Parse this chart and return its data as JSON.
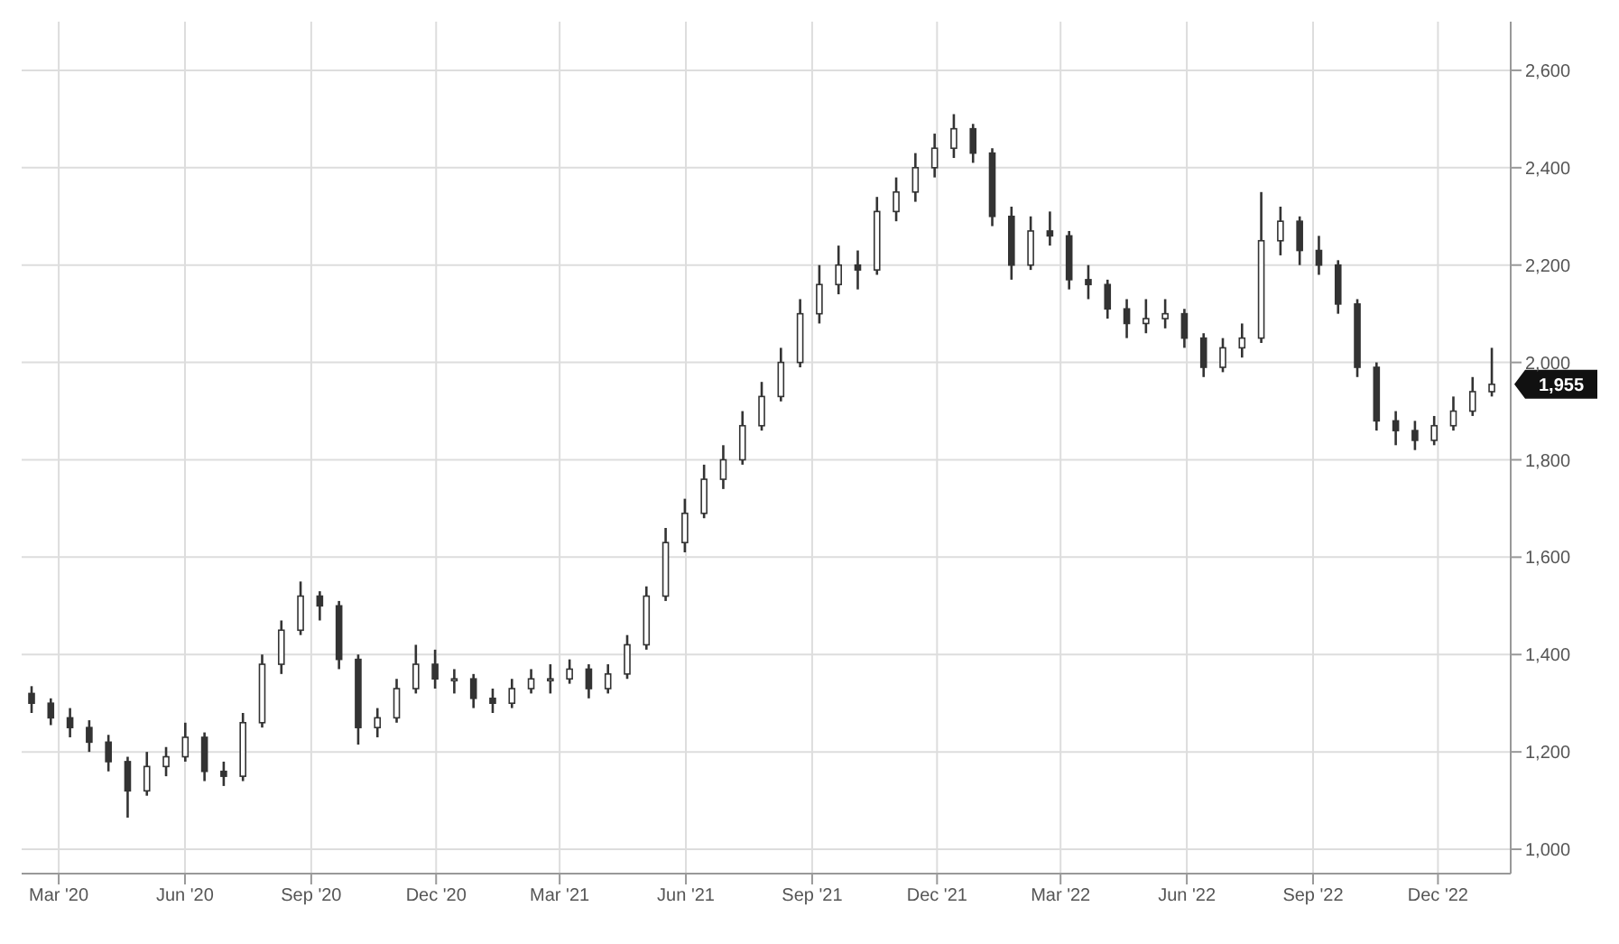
{
  "chart_data": {
    "type": "candlestick",
    "color": "#333333",
    "grid": true,
    "xlim": [
      "2020-02-03",
      "2023-01-23"
    ],
    "xticks": [
      {
        "value": "2020-03-01",
        "label": "Mar '20"
      },
      {
        "value": "2020-06-01",
        "label": "Jun '20"
      },
      {
        "value": "2020-09-01",
        "label": "Sep '20"
      },
      {
        "value": "2020-12-01",
        "label": "Dec '20"
      },
      {
        "value": "2021-03-01",
        "label": "Mar '21"
      },
      {
        "value": "2021-06-01",
        "label": "Jun '21"
      },
      {
        "value": "2021-09-01",
        "label": "Sep '21"
      },
      {
        "value": "2021-12-01",
        "label": "Dec '21"
      },
      {
        "value": "2022-03-01",
        "label": "Mar '22"
      },
      {
        "value": "2022-06-01",
        "label": "Jun '22"
      },
      {
        "value": "2022-09-01",
        "label": "Sep '22"
      },
      {
        "value": "2022-12-01",
        "label": "Dec '22"
      }
    ],
    "ylim": [
      950,
      2700
    ],
    "yticks": [
      {
        "value": 1000,
        "label": "1,000"
      },
      {
        "value": 1200,
        "label": "1,200"
      },
      {
        "value": 1400,
        "label": "1,400"
      },
      {
        "value": 1600,
        "label": "1,600"
      },
      {
        "value": 1800,
        "label": "1,800"
      },
      {
        "value": 2000,
        "label": "2,000"
      },
      {
        "value": 2200,
        "label": "2,200"
      },
      {
        "value": 2400,
        "label": "2,400"
      },
      {
        "value": 2600,
        "label": "2,600"
      }
    ],
    "annotations": [
      {
        "text": "1,955",
        "x": "2023-01-09",
        "y": 1955
      }
    ],
    "x": [
      "2020-02-10",
      "2020-02-24",
      "2020-03-09",
      "2020-03-23",
      "2020-04-06",
      "2020-04-20",
      "2020-05-04",
      "2020-05-18",
      "2020-06-01",
      "2020-06-15",
      "2020-06-29",
      "2020-07-13",
      "2020-07-27",
      "2020-08-10",
      "2020-08-24",
      "2020-09-07",
      "2020-09-21",
      "2020-10-05",
      "2020-10-19",
      "2020-11-02",
      "2020-11-16",
      "2020-11-30",
      "2020-12-14",
      "2020-12-28",
      "2021-01-11",
      "2021-01-25",
      "2021-02-08",
      "2021-02-22",
      "2021-03-08",
      "2021-03-22",
      "2021-04-05",
      "2021-04-19",
      "2021-05-03",
      "2021-05-17",
      "2021-05-31",
      "2021-06-14",
      "2021-06-28",
      "2021-07-12",
      "2021-07-26",
      "2021-08-09",
      "2021-08-23",
      "2021-09-06",
      "2021-09-20",
      "2021-10-04",
      "2021-10-18",
      "2021-11-01",
      "2021-11-15",
      "2021-11-29",
      "2021-12-13",
      "2021-12-27",
      "2022-01-10",
      "2022-01-24",
      "2022-02-07",
      "2022-02-21",
      "2022-03-07",
      "2022-03-21",
      "2022-04-04",
      "2022-04-18",
      "2022-05-02",
      "2022-05-16",
      "2022-05-30",
      "2022-06-13",
      "2022-06-27",
      "2022-07-11",
      "2022-07-25",
      "2022-08-08",
      "2022-08-22",
      "2022-09-05",
      "2022-09-19",
      "2022-10-03",
      "2022-10-17",
      "2022-10-31",
      "2022-11-14",
      "2022-11-28",
      "2022-12-12",
      "2022-12-26",
      "2023-01-09"
    ],
    "ohlc": [
      [
        1320,
        1335,
        1280,
        1300
      ],
      [
        1300,
        1310,
        1255,
        1270
      ],
      [
        1270,
        1290,
        1230,
        1250
      ],
      [
        1250,
        1265,
        1200,
        1220
      ],
      [
        1220,
        1235,
        1160,
        1180
      ],
      [
        1180,
        1190,
        1065,
        1120
      ],
      [
        1120,
        1200,
        1110,
        1170
      ],
      [
        1170,
        1210,
        1150,
        1190
      ],
      [
        1190,
        1260,
        1180,
        1230
      ],
      [
        1230,
        1240,
        1140,
        1160
      ],
      [
        1160,
        1180,
        1130,
        1150
      ],
      [
        1150,
        1280,
        1140,
        1260
      ],
      [
        1260,
        1400,
        1250,
        1380
      ],
      [
        1380,
        1470,
        1360,
        1450
      ],
      [
        1450,
        1550,
        1440,
        1520
      ],
      [
        1520,
        1530,
        1470,
        1500
      ],
      [
        1500,
        1510,
        1370,
        1390
      ],
      [
        1390,
        1400,
        1215,
        1250
      ],
      [
        1250,
        1290,
        1230,
        1270
      ],
      [
        1270,
        1350,
        1260,
        1330
      ],
      [
        1330,
        1420,
        1320,
        1380
      ],
      [
        1380,
        1410,
        1330,
        1350
      ],
      [
        1350,
        1370,
        1320,
        1350
      ],
      [
        1350,
        1360,
        1290,
        1310
      ],
      [
        1310,
        1330,
        1280,
        1300
      ],
      [
        1300,
        1350,
        1290,
        1330
      ],
      [
        1330,
        1370,
        1320,
        1350
      ],
      [
        1350,
        1380,
        1320,
        1350
      ],
      [
        1350,
        1390,
        1340,
        1370
      ],
      [
        1370,
        1380,
        1310,
        1330
      ],
      [
        1330,
        1380,
        1320,
        1360
      ],
      [
        1360,
        1440,
        1350,
        1420
      ],
      [
        1420,
        1540,
        1410,
        1520
      ],
      [
        1520,
        1660,
        1510,
        1630
      ],
      [
        1630,
        1720,
        1610,
        1690
      ],
      [
        1690,
        1790,
        1680,
        1760
      ],
      [
        1760,
        1830,
        1740,
        1800
      ],
      [
        1800,
        1900,
        1790,
        1870
      ],
      [
        1870,
        1960,
        1860,
        1930
      ],
      [
        1930,
        2030,
        1920,
        2000
      ],
      [
        2000,
        2130,
        1990,
        2100
      ],
      [
        2100,
        2200,
        2080,
        2160
      ],
      [
        2160,
        2240,
        2140,
        2200
      ],
      [
        2200,
        2230,
        2150,
        2190
      ],
      [
        2190,
        2340,
        2180,
        2310
      ],
      [
        2310,
        2380,
        2290,
        2350
      ],
      [
        2350,
        2430,
        2330,
        2400
      ],
      [
        2400,
        2470,
        2380,
        2440
      ],
      [
        2440,
        2510,
        2420,
        2480
      ],
      [
        2480,
        2490,
        2410,
        2430
      ],
      [
        2430,
        2440,
        2280,
        2300
      ],
      [
        2300,
        2320,
        2170,
        2200
      ],
      [
        2200,
        2300,
        2190,
        2270
      ],
      [
        2270,
        2310,
        2240,
        2260
      ],
      [
        2260,
        2270,
        2150,
        2170
      ],
      [
        2170,
        2200,
        2130,
        2160
      ],
      [
        2160,
        2170,
        2090,
        2110
      ],
      [
        2110,
        2130,
        2050,
        2080
      ],
      [
        2080,
        2130,
        2060,
        2090
      ],
      [
        2090,
        2130,
        2070,
        2100
      ],
      [
        2100,
        2110,
        2030,
        2050
      ],
      [
        2050,
        2060,
        1970,
        1990
      ],
      [
        1990,
        2050,
        1980,
        2030
      ],
      [
        2030,
        2080,
        2010,
        2050
      ],
      [
        2050,
        2350,
        2040,
        2250
      ],
      [
        2250,
        2320,
        2220,
        2290
      ],
      [
        2290,
        2300,
        2200,
        2230
      ],
      [
        2230,
        2260,
        2180,
        2200
      ],
      [
        2200,
        2210,
        2100,
        2120
      ],
      [
        2120,
        2130,
        1970,
        1990
      ],
      [
        1990,
        2000,
        1860,
        1880
      ],
      [
        1880,
        1900,
        1830,
        1860
      ],
      [
        1860,
        1880,
        1820,
        1840
      ],
      [
        1840,
        1890,
        1830,
        1870
      ],
      [
        1870,
        1930,
        1860,
        1900
      ],
      [
        1900,
        1970,
        1890,
        1940
      ],
      [
        1940,
        2030,
        1930,
        1955
      ]
    ]
  }
}
